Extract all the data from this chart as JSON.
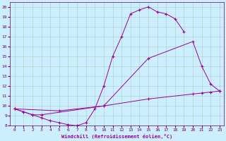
{
  "xlabel": "Windchill (Refroidissement éolien,°C)",
  "bg_color": "#cceeff",
  "line_color": "#990099",
  "ylim": [
    8,
    20.5
  ],
  "xlim": [
    -0.5,
    23.5
  ],
  "yticks": [
    8,
    9,
    10,
    11,
    12,
    13,
    14,
    15,
    16,
    17,
    18,
    19,
    20
  ],
  "xticks": [
    0,
    1,
    2,
    3,
    4,
    5,
    6,
    7,
    8,
    9,
    10,
    11,
    12,
    13,
    14,
    15,
    16,
    17,
    18,
    19,
    20,
    21,
    22,
    23
  ],
  "line1": [
    [
      0,
      9.7
    ],
    [
      1,
      9.4
    ],
    [
      2,
      9.1
    ],
    [
      3,
      8.8
    ],
    [
      4,
      8.5
    ],
    [
      5,
      8.3
    ],
    [
      6,
      8.1
    ],
    [
      7,
      8.0
    ],
    [
      8,
      8.3
    ],
    [
      9,
      9.7
    ],
    [
      10,
      12.0
    ],
    [
      11,
      15.0
    ],
    [
      12,
      17.0
    ],
    [
      13,
      19.3
    ],
    [
      14,
      19.7
    ],
    [
      15,
      20.0
    ],
    [
      16,
      19.5
    ],
    [
      17,
      19.3
    ],
    [
      18,
      18.8
    ],
    [
      19,
      17.5
    ]
  ],
  "line2": [
    [
      0,
      9.7
    ],
    [
      1,
      9.4
    ],
    [
      2,
      9.1
    ],
    [
      3,
      9.1
    ],
    [
      10,
      10.0
    ],
    [
      15,
      14.8
    ],
    [
      20,
      16.5
    ],
    [
      21,
      14.0
    ],
    [
      22,
      12.2
    ],
    [
      23,
      11.5
    ]
  ],
  "line3": [
    [
      0,
      9.7
    ],
    [
      5,
      9.5
    ],
    [
      10,
      10.0
    ],
    [
      15,
      10.7
    ],
    [
      20,
      11.2
    ],
    [
      21,
      11.3
    ],
    [
      22,
      11.4
    ],
    [
      23,
      11.5
    ]
  ]
}
